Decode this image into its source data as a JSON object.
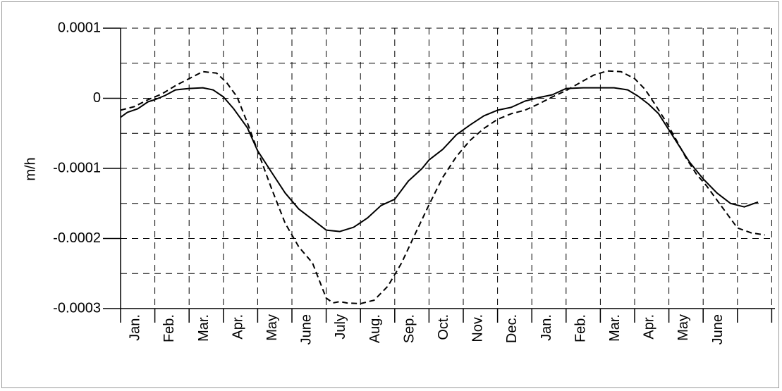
{
  "chart_data": {
    "type": "line",
    "title": "",
    "xlabel": "",
    "ylabel": "m/h",
    "ylim": [
      -0.0003,
      0.0001
    ],
    "yticks": [
      0.0001,
      0,
      -0.0001,
      -0.0002,
      -0.0003
    ],
    "ytick_labels": [
      "0.0001",
      "0",
      "-0.0001",
      "-0.0002",
      "-0.0003"
    ],
    "xlim": [
      0,
      18.8
    ],
    "categories": [
      "Jan.",
      "Feb.",
      "Mar.",
      "Apr.",
      "May",
      "June",
      "July",
      "Aug.",
      "Sep.",
      "Oct.",
      "Nov.",
      "Dec.",
      "Jan.",
      "Feb.",
      "Mar.",
      "Apr.",
      "May",
      "June"
    ],
    "grid": true,
    "legend": "none",
    "series": [
      {
        "style": "solid",
        "color": "#000000",
        "x": [
          0,
          0.2,
          0.5,
          0.8,
          1.0,
          1.3,
          1.6,
          2.0,
          2.4,
          2.7,
          3.0,
          3.3,
          3.7,
          4.0,
          4.4,
          4.8,
          5.2,
          5.6,
          6.0,
          6.4,
          6.8,
          7.2,
          7.6,
          8.0,
          8.4,
          8.8,
          9.0,
          9.4,
          9.8,
          10.2,
          10.6,
          11.0,
          11.4,
          11.8,
          12.2,
          12.6,
          13.0,
          13.5,
          14.0,
          14.4,
          14.8,
          15.1,
          15.4,
          15.7,
          16.0,
          16.3,
          16.6,
          17.0,
          17.4,
          17.8,
          18.2,
          18.6
        ],
        "y": [
          -2.7e-05,
          -2e-05,
          -1.5e-05,
          -5e-06,
          -2e-06,
          4e-06,
          1.2e-05,
          1.4e-05,
          1.5e-05,
          1.2e-05,
          2e-06,
          -1.5e-05,
          -4.2e-05,
          -7.5e-05,
          -0.000105,
          -0.000135,
          -0.000158,
          -0.000173,
          -0.000188,
          -0.00019,
          -0.000184,
          -0.000171,
          -0.000153,
          -0.000144,
          -0.000118,
          -0.0001,
          -8.8e-05,
          -7.3e-05,
          -5.2e-05,
          -3.8e-05,
          -2.5e-05,
          -1.7e-05,
          -1.3e-05,
          -4e-06,
          1e-06,
          5e-06,
          1.4e-05,
          1.5e-05,
          1.5e-05,
          1.5e-05,
          1.2e-05,
          3e-06,
          -8e-06,
          -2.2e-05,
          -4.5e-05,
          -6.8e-05,
          -9.1e-05,
          -0.000115,
          -0.000135,
          -0.00015,
          -0.000155,
          -0.000148
        ]
      },
      {
        "style": "dashed",
        "color": "#000000",
        "x": [
          0,
          0.4,
          0.8,
          1.2,
          1.6,
          2.0,
          2.4,
          2.8,
          3.1,
          3.4,
          3.7,
          4.0,
          4.4,
          4.8,
          5.2,
          5.6,
          6.0,
          6.2,
          6.4,
          6.6,
          7.0,
          7.4,
          7.8,
          8.2,
          8.6,
          9.0,
          9.4,
          9.8,
          10.2,
          10.6,
          11.0,
          11.4,
          11.8,
          12.2,
          12.6,
          13.0,
          13.4,
          13.8,
          14.2,
          14.6,
          15.0,
          15.3,
          15.6,
          15.9,
          16.2,
          16.5,
          16.8,
          17.1,
          17.4,
          17.7,
          18.0,
          18.4,
          18.8
        ],
        "y": [
          -1.7e-05,
          -1.2e-05,
          -2e-06,
          6e-06,
          1.8e-05,
          2.8e-05,
          3.8e-05,
          3.6e-05,
          2.2e-05,
          2e-06,
          -3.5e-05,
          -7.5e-05,
          -0.000128,
          -0.000178,
          -0.000212,
          -0.000235,
          -0.000285,
          -0.000292,
          -0.00029,
          -0.000292,
          -0.000293,
          -0.000288,
          -0.000268,
          -0.000235,
          -0.000193,
          -0.000152,
          -0.000113,
          -8.3e-05,
          -6e-05,
          -4.3e-05,
          -3e-05,
          -2.2e-05,
          -1.7e-05,
          -8e-06,
          2e-06,
          1.1e-05,
          2.2e-05,
          3.3e-05,
          3.9e-05,
          3.8e-05,
          2.8e-05,
          1.3e-05,
          -9e-06,
          -3.2e-05,
          -5.8e-05,
          -8.5e-05,
          -0.000108,
          -0.000125,
          -0.000145,
          -0.000165,
          -0.000185,
          -0.000192,
          -0.000195
        ]
      }
    ]
  }
}
